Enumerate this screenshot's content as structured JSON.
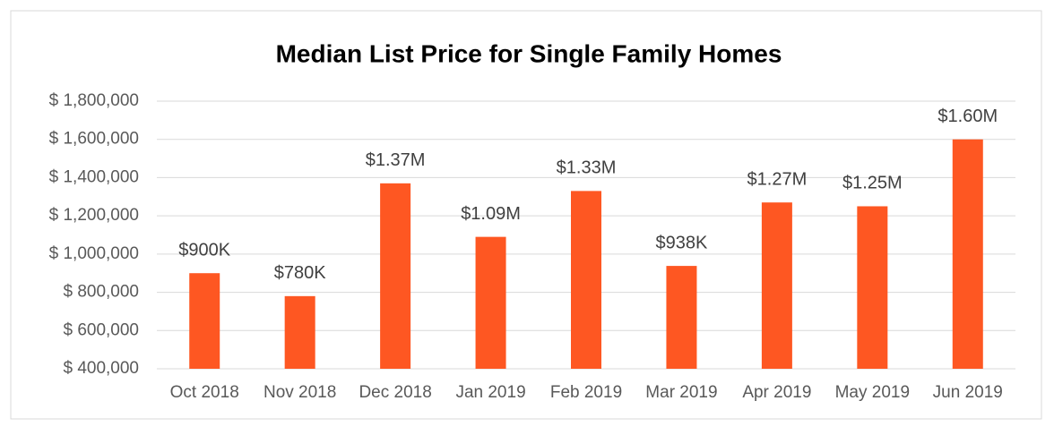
{
  "chart_data": {
    "type": "bar",
    "title": "Median List Price for Single Family Homes",
    "categories": [
      "Oct 2018",
      "Nov 2018",
      "Dec 2018",
      "Jan 2019",
      "Feb 2019",
      "Mar 2019",
      "Apr 2019",
      "May 2019",
      "Jun 2019"
    ],
    "values": [
      900000,
      780000,
      1370000,
      1090000,
      1330000,
      938000,
      1270000,
      1250000,
      1600000
    ],
    "value_labels": [
      "$900K",
      "$780K",
      "$1.37M",
      "$1.09M",
      "$1.33M",
      "$938K",
      "$1.27M",
      "$1.25M",
      "$1.60M"
    ],
    "color": "#fe5722",
    "ylim": [
      400000,
      1800000
    ],
    "yticks": [
      {
        "value": 400000,
        "label": "$ 400,000"
      },
      {
        "value": 600000,
        "label": "$ 600,000"
      },
      {
        "value": 800000,
        "label": "$ 800,000"
      },
      {
        "value": 1000000,
        "label": "$ 1,000,000"
      },
      {
        "value": 1200000,
        "label": "$ 1,200,000"
      },
      {
        "value": 1400000,
        "label": "$ 1,400,000"
      },
      {
        "value": 1600000,
        "label": "$ 1,600,000"
      },
      {
        "value": 1800000,
        "label": "$ 1,800,000"
      }
    ],
    "grid": true
  }
}
